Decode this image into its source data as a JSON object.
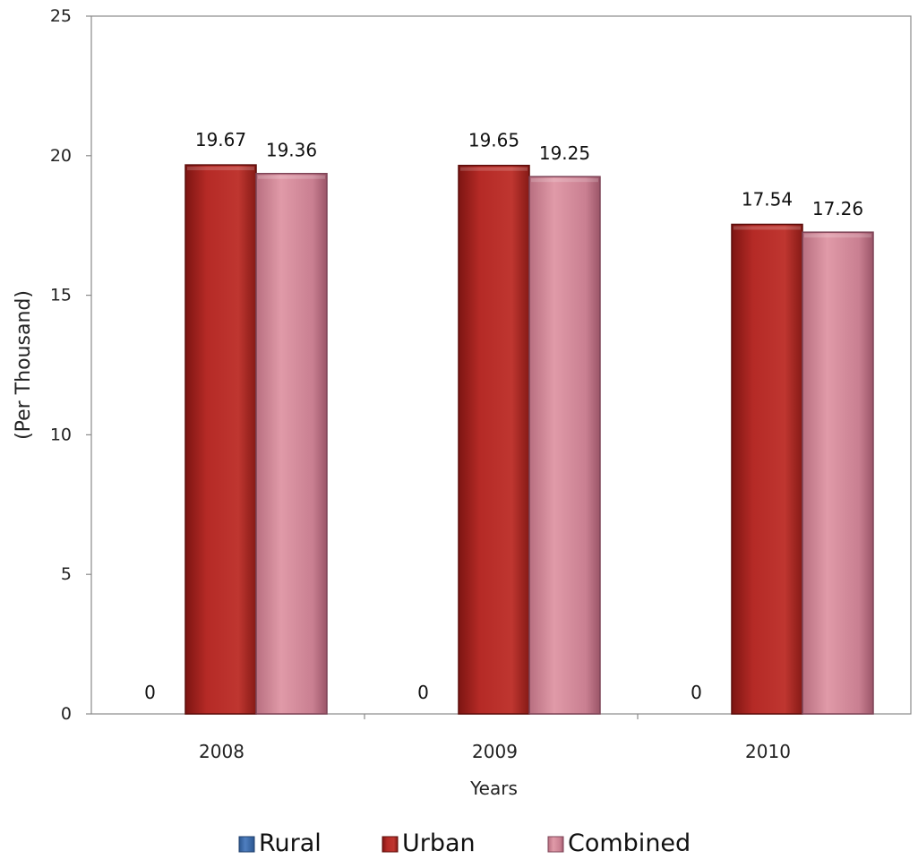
{
  "chart_data": {
    "type": "bar",
    "categories": [
      "2008",
      "2009",
      "2010"
    ],
    "series": [
      {
        "name": "Rural",
        "values": [
          0,
          0,
          0
        ],
        "data_labels": [
          "0",
          "0",
          "0"
        ],
        "color": "#3f6fb0"
      },
      {
        "name": "Urban",
        "values": [
          19.67,
          19.65,
          17.54
        ],
        "data_labels": [
          "19.67",
          "19.65",
          "17.54"
        ],
        "color": "#b52a26"
      },
      {
        "name": "Combined",
        "values": [
          19.36,
          19.25,
          17.26
        ],
        "data_labels": [
          "19.36",
          "19.25",
          "17.26"
        ],
        "color": "#d98c9b"
      }
    ],
    "title": "",
    "xlabel": "Years",
    "ylabel": "(Per Thousand)",
    "ylim": [
      0,
      25
    ],
    "yticks": [
      0,
      5,
      10,
      15,
      20,
      25
    ],
    "grid": false,
    "legend_position": "bottom"
  }
}
